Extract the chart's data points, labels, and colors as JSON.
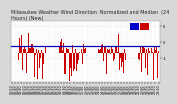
{
  "title": "Milwaukee Weather Wind Direction  Normalized and Median  (24 Hours) (New)",
  "background_color": "#d8d8d8",
  "plot_bg_color": "#ffffff",
  "bar_color": "#cc0000",
  "median_color": "#0000bb",
  "median_value": 1.2,
  "ylim": [
    -5.5,
    6.0
  ],
  "ytick_values": [
    5,
    2,
    -1
  ],
  "ytick_labels": [
    "5",
    "2",
    "-1"
  ],
  "grid_color": "#bbbbbb",
  "legend_blue_color": "#0000cc",
  "legend_red_color": "#cc0000",
  "n_points": 144,
  "title_fontsize": 3.5,
  "tick_fontsize": 2.8,
  "bar_width": 0.7,
  "median_lw": 0.9
}
